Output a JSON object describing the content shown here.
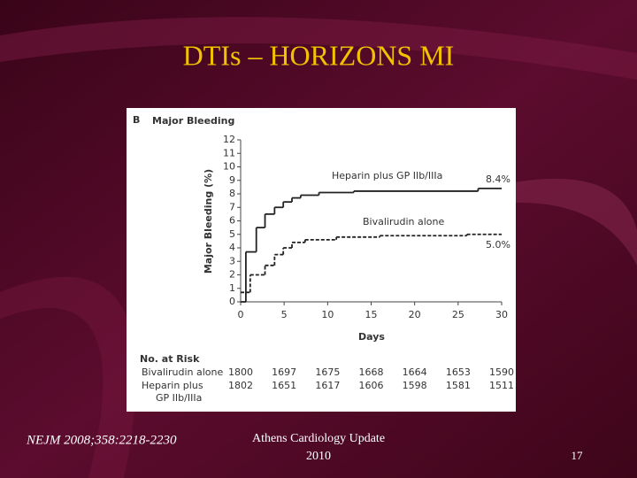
{
  "slide": {
    "title": "DTIs – HORIZONS MI",
    "citation": "NEJM 2008;358:2218-2230",
    "event_lines": [
      "Athens Cardiology Update",
      "2010"
    ],
    "page_number": "17"
  },
  "chart_data": {
    "type": "step",
    "panel": "B",
    "title": "Major Bleeding",
    "y_label": "Major Bleeding (%)",
    "x_label": "Days",
    "xlim": [
      0,
      30
    ],
    "xticks": [
      0,
      5,
      10,
      15,
      20,
      25,
      30
    ],
    "ylim": [
      0,
      12
    ],
    "yticks": [
      0,
      1,
      2,
      3,
      4,
      5,
      6,
      7,
      8,
      9,
      10,
      11,
      12
    ],
    "series": [
      {
        "name": "Heparin plus GP IIb/IIIa",
        "color": "#222222",
        "dash": false,
        "end_label": "8.4%",
        "x": [
          0,
          0.6,
          1.8,
          2.8,
          3.9,
          4.9,
          5.9,
          6.9,
          9,
          13,
          27.3
        ],
        "values": [
          0,
          3.7,
          5.5,
          6.5,
          7.0,
          7.4,
          7.7,
          7.9,
          8.1,
          8.2,
          8.4
        ]
      },
      {
        "name": "Bivalirudin alone",
        "color": "#222222",
        "dash": true,
        "end_label": "5.0%",
        "x": [
          0,
          1.1,
          2.8,
          3.9,
          4.9,
          5.9,
          7.4,
          11,
          16,
          26
        ],
        "values": [
          0.7,
          2.0,
          2.7,
          3.5,
          4.0,
          4.4,
          4.6,
          4.8,
          4.9,
          5.0
        ]
      }
    ],
    "risk_table": {
      "title": "No. at Risk",
      "rows": [
        {
          "label_lines": [
            "Bivalirudin alone"
          ],
          "values": [
            1800,
            1697,
            1675,
            1668,
            1664,
            1653,
            1590
          ]
        },
        {
          "label_lines": [
            "Heparin plus",
            "GP IIb/IIIa"
          ],
          "values": [
            1802,
            1651,
            1617,
            1606,
            1598,
            1581,
            1511
          ]
        }
      ]
    }
  }
}
